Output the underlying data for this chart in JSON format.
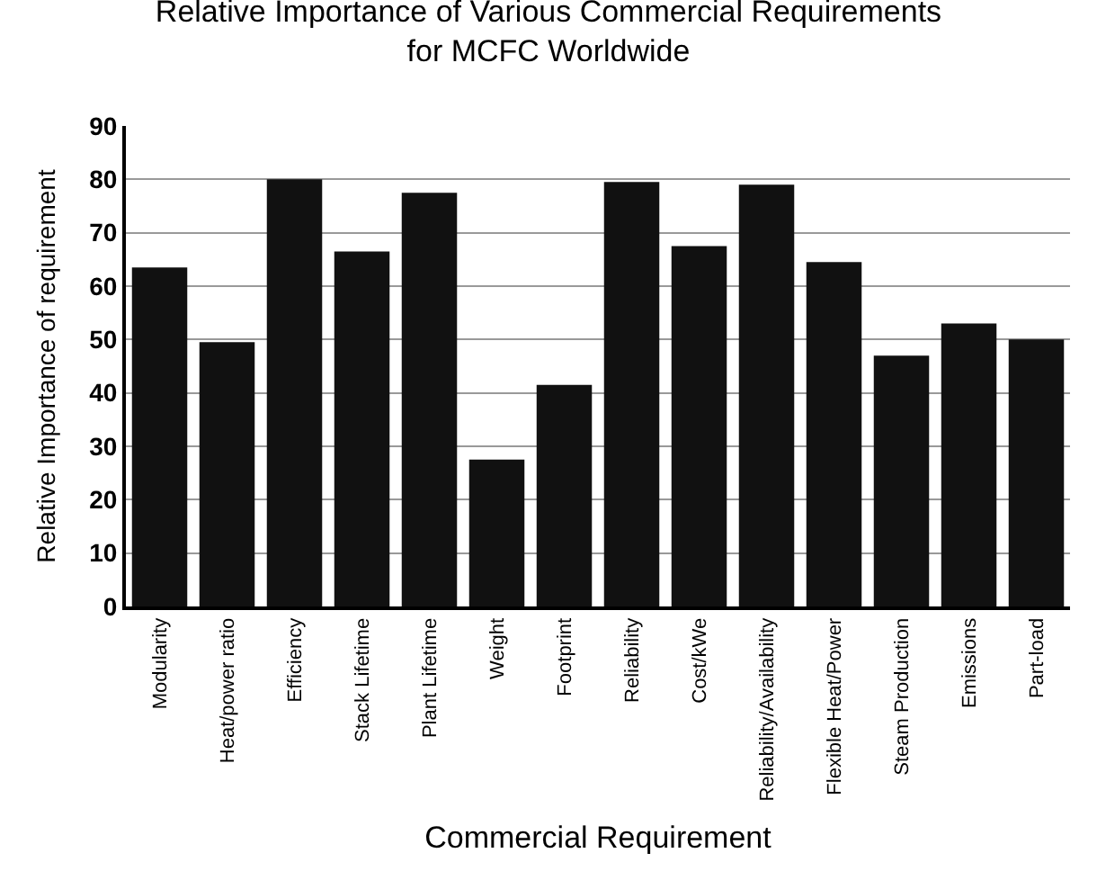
{
  "chart_data": {
    "type": "bar",
    "title": "Relative Importance of Various Commercial Requirements\nfor MCFC Worldwide",
    "xlabel": "Commercial Requirement",
    "ylabel": "Relative Importance of requirement",
    "categories": [
      "Modularity",
      "Heat/power ratio",
      "Efficiency",
      "Stack Lifetime",
      "Plant Lifetime",
      "Weight",
      "Footprint",
      "Reliability",
      "Cost/kWe",
      "Reliability/Availability",
      "Flexible Heat/Power",
      "Steam Production",
      "Emissions",
      "Part-load"
    ],
    "values": [
      63.5,
      49.5,
      80,
      66.5,
      77.5,
      27.5,
      41.5,
      79.5,
      67.5,
      79,
      64.5,
      47,
      53,
      50
    ],
    "color": "#111111",
    "ylim": [
      0,
      90
    ],
    "yticks": [
      0,
      10,
      20,
      30,
      40,
      50,
      60,
      70,
      80,
      90
    ],
    "grid": "y"
  }
}
